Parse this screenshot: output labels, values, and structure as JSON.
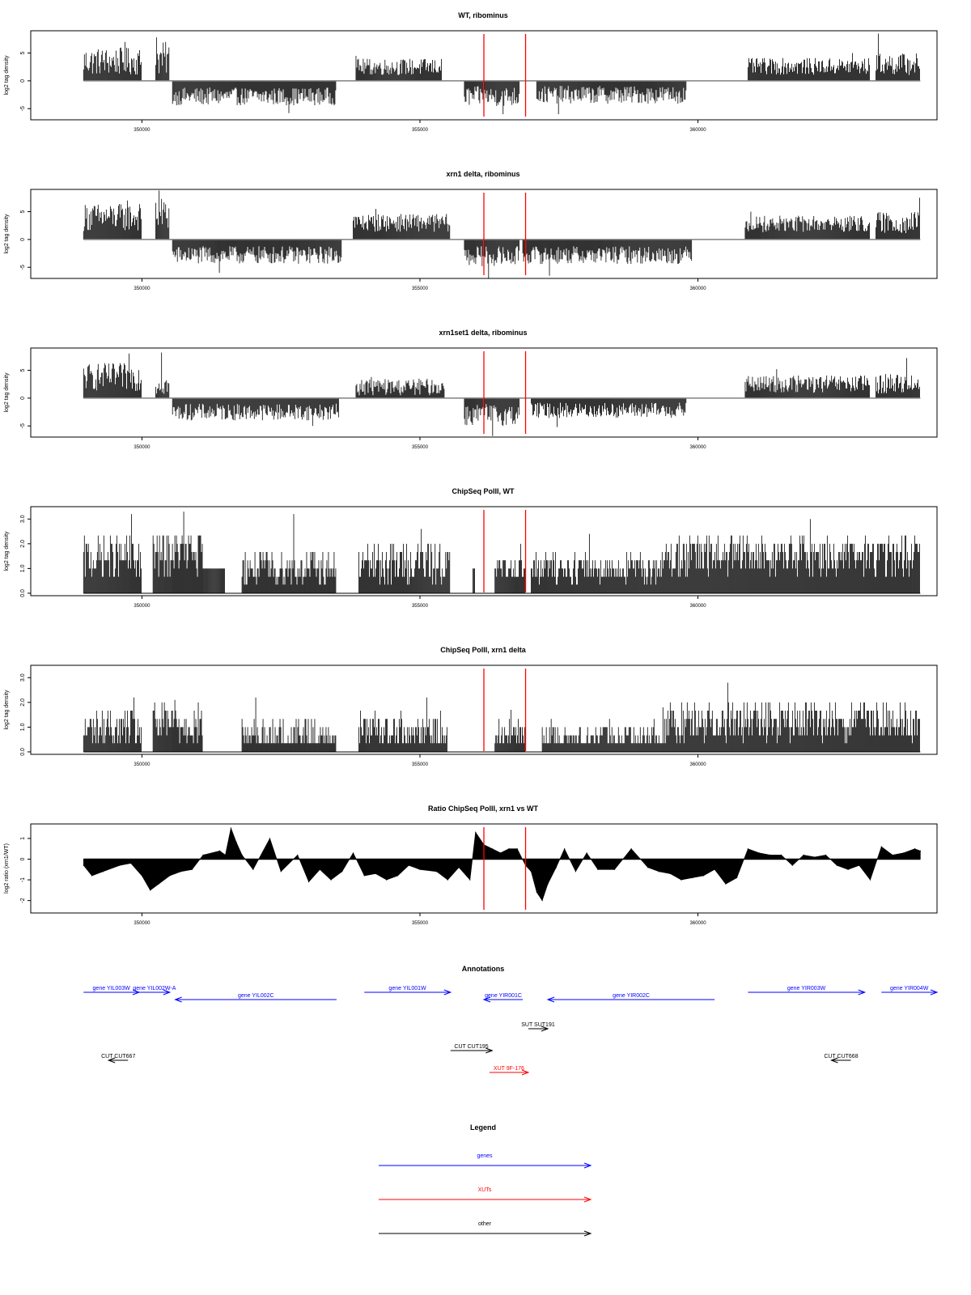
{
  "colors": {
    "gene": "#0000ff",
    "xut": "#ff0000",
    "other": "#000000",
    "marker": "#ff0000",
    "bar": "#000000",
    "baseline": "#808080"
  },
  "xaxis": {
    "range": [
      348000,
      364300
    ],
    "ticks": [
      350000,
      355000,
      360000
    ]
  },
  "markers": [
    356150,
    356900
  ],
  "chart_data": [
    {
      "type": "bar",
      "id": "wt_ribominus",
      "title": "WT, ribominus",
      "ylabel": "log2 tag density",
      "ylim": [
        -7,
        9
      ],
      "yticks": [
        -5,
        0,
        5
      ],
      "xlabel": "",
      "grid": false,
      "baseline": 0,
      "markers": true,
      "segments": [
        {
          "x": [
            348950,
            350000
          ],
          "level": 3.5,
          "amp": 2.5,
          "peak": 7
        },
        {
          "x": [
            350250,
            350500
          ],
          "level": 4,
          "amp": 3,
          "peak": 7.8
        },
        {
          "x": [
            350550,
            353500
          ],
          "level": -2.8,
          "amp": 1.6,
          "peak": -5.8
        },
        {
          "x": [
            353850,
            355400
          ],
          "level": 2.5,
          "amp": 1.5,
          "peak": 4.5
        },
        {
          "x": [
            355800,
            356800
          ],
          "level": -2.8,
          "amp": 1.8,
          "peak": -6
        },
        {
          "x": [
            357100,
            359800
          ],
          "level": -2.5,
          "amp": 1.6,
          "peak": -6
        },
        {
          "x": [
            360900,
            363100
          ],
          "level": 2.6,
          "amp": 1.5,
          "peak": 5
        },
        {
          "x": [
            363200,
            364000
          ],
          "level": 3,
          "amp": 2,
          "peak": 8.5
        }
      ]
    },
    {
      "type": "bar",
      "id": "xrn1_ribominus",
      "title": "xrn1 delta, ribominus",
      "ylabel": "log2 tag density",
      "ylim": [
        -7,
        9
      ],
      "yticks": [
        -5,
        0,
        5
      ],
      "xlabel": "",
      "grid": false,
      "baseline": 0,
      "markers": true,
      "segments": [
        {
          "x": [
            348950,
            350000
          ],
          "level": 4,
          "amp": 2.5,
          "peak": 7
        },
        {
          "x": [
            350250,
            350500
          ],
          "level": 4.5,
          "amp": 3,
          "peak": 8.8
        },
        {
          "x": [
            350550,
            353600
          ],
          "level": -2.8,
          "amp": 1.6,
          "peak": -6
        },
        {
          "x": [
            353800,
            355550
          ],
          "level": 3,
          "amp": 1.6,
          "peak": 5.5
        },
        {
          "x": [
            355800,
            356800
          ],
          "level": -3,
          "amp": 1.8,
          "peak": -7
        },
        {
          "x": [
            356850,
            359900
          ],
          "level": -2.8,
          "amp": 1.6,
          "peak": -6.5
        },
        {
          "x": [
            360850,
            363100
          ],
          "level": 2.8,
          "amp": 1.5,
          "peak": 5
        },
        {
          "x": [
            363200,
            364000
          ],
          "level": 3,
          "amp": 2,
          "peak": 7.5
        }
      ]
    },
    {
      "type": "bar",
      "id": "xrn1set1_ribominus",
      "title": "xrn1set1 delta, ribominus",
      "ylabel": "log2 tag density",
      "ylim": [
        -7,
        9
      ],
      "yticks": [
        -5,
        0,
        5
      ],
      "xlabel": "",
      "grid": false,
      "baseline": 0,
      "markers": true,
      "segments": [
        {
          "x": [
            348950,
            350000
          ],
          "level": 3.8,
          "amp": 2.5,
          "peak": 8
        },
        {
          "x": [
            350250,
            350500
          ],
          "level": 2.5,
          "amp": 2,
          "peak": 8.2
        },
        {
          "x": [
            350550,
            353550
          ],
          "level": -2.5,
          "amp": 1.5,
          "peak": -5
        },
        {
          "x": [
            353850,
            355450
          ],
          "level": 2,
          "amp": 1.5,
          "peak": 3.8
        },
        {
          "x": [
            355800,
            356800
          ],
          "level": -3,
          "amp": 2,
          "peak": -6.8
        },
        {
          "x": [
            357000,
            359800
          ],
          "level": -2.2,
          "amp": 1.4,
          "peak": -5.2
        },
        {
          "x": [
            360850,
            363100
          ],
          "level": 2.5,
          "amp": 1.6,
          "peak": 5.2
        },
        {
          "x": [
            363200,
            364000
          ],
          "level": 2.6,
          "amp": 1.8,
          "peak": 7.2
        }
      ]
    },
    {
      "type": "bar",
      "id": "chip_wt",
      "title": "ChipSeq PolII, WT",
      "ylabel": "log2 tag density",
      "ylim": [
        -0.1,
        3.5
      ],
      "yticks": [
        0,
        1,
        2,
        3
      ],
      "yticklabels": [
        "0.0",
        "1.0",
        "2.0",
        "3.0"
      ],
      "xlabel": "",
      "grid": false,
      "baseline": null,
      "markers": true,
      "segments": [
        {
          "x": [
            348950,
            350000
          ],
          "level": 1.4,
          "amp": 0.9,
          "peak": 3.2
        },
        {
          "x": [
            350200,
            351100
          ],
          "level": 1.6,
          "amp": 0.9,
          "peak": 3.3
        },
        {
          "x": [
            351100,
            351500
          ],
          "level": 1,
          "amp": 0,
          "peak": 1
        },
        {
          "x": [
            351800,
            353500
          ],
          "level": 1,
          "amp": 0.7,
          "peak": 3.2
        },
        {
          "x": [
            353900,
            355550
          ],
          "level": 1.2,
          "amp": 0.8,
          "peak": 2.6
        },
        {
          "x": [
            355950,
            356000
          ],
          "level": 1,
          "amp": 0,
          "peak": 1
        },
        {
          "x": [
            356350,
            356900
          ],
          "level": 1.0,
          "amp": 0.5,
          "peak": 2
        },
        {
          "x": [
            357000,
            359400
          ],
          "level": 1.0,
          "amp": 0.6,
          "peak": 2.4
        },
        {
          "x": [
            359400,
            364000
          ],
          "level": 1.5,
          "amp": 0.8,
          "peak": 3
        }
      ]
    },
    {
      "type": "bar",
      "id": "chip_xrn1",
      "title": "ChipSeq PolII, xrn1 delta",
      "ylabel": "log2 tag density",
      "ylim": [
        -0.1,
        3.5
      ],
      "yticks": [
        0,
        1,
        2,
        3
      ],
      "yticklabels": [
        "0.0",
        "1.0",
        "2.0",
        "3.0"
      ],
      "xlabel": "",
      "grid": false,
      "baseline": null,
      "markers": true,
      "segments": [
        {
          "x": [
            348950,
            350000
          ],
          "level": 0.9,
          "amp": 0.8,
          "peak": 2.2
        },
        {
          "x": [
            350200,
            351100
          ],
          "level": 1.1,
          "amp": 0.8,
          "peak": 2.1
        },
        {
          "x": [
            351800,
            353500
          ],
          "level": 0.6,
          "amp": 0.7,
          "peak": 2.2
        },
        {
          "x": [
            353900,
            355500
          ],
          "level": 0.8,
          "amp": 0.8,
          "peak": 2.2
        },
        {
          "x": [
            356350,
            356900
          ],
          "level": 0.7,
          "amp": 0.6,
          "peak": 1.7
        },
        {
          "x": [
            357200,
            359400
          ],
          "level": 0.6,
          "amp": 0.6,
          "peak": 1.8
        },
        {
          "x": [
            359400,
            364000
          ],
          "level": 1.2,
          "amp": 0.8,
          "peak": 2.8
        }
      ]
    },
    {
      "type": "area",
      "id": "ratio",
      "title": "Ratio ChipSeq PolII, xrn1 vs WT",
      "ylabel": "log2 ratio (xrn1/WT)",
      "ylim": [
        -2.6,
        1.7
      ],
      "yticks": [
        -2,
        -1,
        0,
        1
      ],
      "xlabel": "",
      "grid": false,
      "baseline": 0,
      "markers": true,
      "x": [
        348950,
        349100,
        349300,
        349600,
        349800,
        350000,
        350150,
        350300,
        350500,
        350700,
        350900,
        351100,
        351400,
        351500,
        351600,
        351700,
        351800,
        352000,
        352300,
        352500,
        352800,
        353000,
        353200,
        353400,
        353600,
        353800,
        354000,
        354200,
        354400,
        354600,
        354800,
        355000,
        355300,
        355500,
        355700,
        355900,
        356000,
        356150,
        356300,
        356450,
        356600,
        356750,
        356900,
        357000,
        357100,
        357200,
        357300,
        357450,
        357600,
        357800,
        358000,
        358200,
        358500,
        358800,
        359100,
        359300,
        359500,
        359700,
        359900,
        360100,
        360300,
        360500,
        360700,
        360900,
        361100,
        361300,
        361500,
        361700,
        361900,
        362100,
        362300,
        362500,
        362700,
        362900,
        363100,
        363300,
        363500,
        363700,
        363900,
        364000
      ],
      "values": [
        -0.3,
        -0.8,
        -0.6,
        -0.3,
        -0.2,
        -0.8,
        -1.5,
        -1.2,
        -0.8,
        -0.6,
        -0.5,
        0.2,
        0.4,
        0.2,
        1.5,
        0.8,
        0.2,
        -0.5,
        1.0,
        -0.6,
        0.2,
        -1.1,
        -0.5,
        -1.0,
        -0.6,
        0.3,
        -0.8,
        -0.7,
        -1.0,
        -0.8,
        -0.3,
        -0.5,
        -0.6,
        -1.0,
        -0.4,
        -1.0,
        1.3,
        0.7,
        0.5,
        0.3,
        0.5,
        0.5,
        -0.3,
        -0.6,
        -1.6,
        -2.0,
        -1.2,
        -0.4,
        0.5,
        -0.6,
        0.3,
        -0.5,
        -0.5,
        0.5,
        -0.4,
        -0.6,
        -0.7,
        -1.0,
        -0.9,
        -0.8,
        -0.5,
        -1.2,
        -0.9,
        0.5,
        0.3,
        0.2,
        0.2,
        -0.3,
        0.2,
        0.1,
        0.2,
        -0.3,
        -0.5,
        -0.3,
        -1.0,
        0.6,
        0.2,
        0.3,
        0.5,
        0.4
      ]
    }
  ],
  "annotations": {
    "title": "Annotations",
    "features": [
      {
        "label": "gene YIL003W",
        "color": "gene",
        "start": 348950,
        "end": 349950,
        "dir": 1,
        "row": 1
      },
      {
        "label": "gene YIL002W-A",
        "color": "gene",
        "start": 349950,
        "end": 350500,
        "dir": 1,
        "row": 1
      },
      {
        "label": "gene YIL002C",
        "color": "gene",
        "start": 350600,
        "end": 353500,
        "dir": -1,
        "row": 1.3
      },
      {
        "label": "gene YIL001W",
        "color": "gene",
        "start": 354000,
        "end": 355550,
        "dir": 1,
        "row": 1
      },
      {
        "label": "gene YIR001C",
        "color": "gene",
        "start": 356150,
        "end": 356850,
        "dir": -1,
        "row": 1.3
      },
      {
        "label": "gene YIR002C",
        "color": "gene",
        "start": 357300,
        "end": 360300,
        "dir": -1,
        "row": 1.3
      },
      {
        "label": "gene YIR003W",
        "color": "gene",
        "start": 360900,
        "end": 363000,
        "dir": 1,
        "row": 1
      },
      {
        "label": "gene YIR004W",
        "color": "gene",
        "start": 363300,
        "end": 364300,
        "dir": 1,
        "row": 1
      },
      {
        "label": "SUT SUT191",
        "color": "other",
        "start": 356950,
        "end": 357300,
        "dir": 1,
        "row": 2.5
      },
      {
        "label": "CUT CUT195",
        "color": "other",
        "start": 355550,
        "end": 356300,
        "dir": 1,
        "row": 3.4
      },
      {
        "label": "CUT CUT667",
        "color": "other",
        "start": 349400,
        "end": 349750,
        "dir": -1,
        "row": 3.8
      },
      {
        "label": "CUT CUT668",
        "color": "other",
        "start": 362400,
        "end": 362750,
        "dir": -1,
        "row": 3.8
      },
      {
        "label": "XUT 9F-176",
        "color": "xut",
        "start": 356250,
        "end": 356950,
        "dir": 1,
        "row": 4.3
      }
    ]
  },
  "legend": {
    "title": "Legend",
    "items": [
      {
        "label": "genes",
        "color": "gene"
      },
      {
        "label": "XUTs",
        "color": "xut"
      },
      {
        "label": "other",
        "color": "other"
      }
    ]
  }
}
